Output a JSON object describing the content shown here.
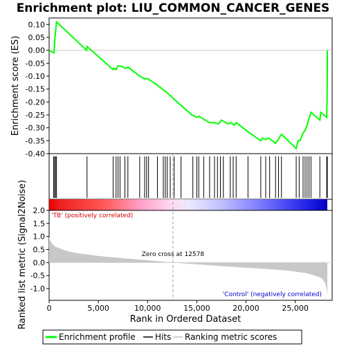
{
  "chart_data": {
    "type": "line",
    "title": "Enrichment plot: LIU_COMMON_CANCER_GENES",
    "es_panel": {
      "ylabel": "Enrichment score (ES)",
      "ylim": [
        -0.4,
        0.125
      ],
      "yticks": [
        "0.10",
        "0.05",
        "0.00",
        "-0.05",
        "-0.10",
        "-0.15",
        "-0.20",
        "-0.25",
        "-0.30",
        "-0.35",
        "-0.40"
      ],
      "ytick_values": [
        0.1,
        0.05,
        0.0,
        -0.05,
        -0.1,
        -0.15,
        -0.2,
        -0.25,
        -0.3,
        -0.35,
        -0.4
      ],
      "line_color": "#00ff00",
      "series": [
        {
          "name": "Enrichment profile",
          "x": [
            0,
            500,
            550,
            650,
            750,
            3800,
            3850,
            6500,
            6600,
            6800,
            7000,
            7200,
            7800,
            8000,
            9200,
            9700,
            10000,
            11000,
            12000,
            13000,
            14500,
            15000,
            15200,
            16300,
            16800,
            17200,
            17500,
            18200,
            18500,
            18800,
            19000,
            20200,
            21500,
            21700,
            22000,
            22300,
            23000,
            23300,
            23600,
            25100,
            25300,
            25500,
            25800,
            26000,
            26200,
            26400,
            26600,
            27500,
            27600,
            28200,
            28230,
            28250,
            28260
          ],
          "y": [
            0.0,
            -0.01,
            0.03,
            0.07,
            0.11,
            0.0,
            0.015,
            -0.075,
            -0.07,
            -0.075,
            -0.06,
            -0.06,
            -0.07,
            -0.065,
            -0.1,
            -0.11,
            -0.11,
            -0.135,
            -0.165,
            -0.2,
            -0.25,
            -0.26,
            -0.255,
            -0.28,
            -0.28,
            -0.285,
            -0.27,
            -0.285,
            -0.28,
            -0.29,
            -0.28,
            -0.315,
            -0.35,
            -0.34,
            -0.345,
            -0.34,
            -0.36,
            -0.345,
            -0.325,
            -0.38,
            -0.35,
            -0.35,
            -0.32,
            -0.31,
            -0.29,
            -0.265,
            -0.24,
            -0.27,
            -0.24,
            -0.26,
            -0.2,
            -0.12,
            0.0
          ]
        }
      ],
      "hits": [
        450,
        550,
        650,
        750,
        3850,
        6500,
        6800,
        7000,
        7200,
        7700,
        8000,
        9200,
        9700,
        9900,
        10100,
        11000,
        11600,
        11800,
        12000,
        12300,
        12700,
        13400,
        14600,
        15000,
        15200,
        15700,
        16300,
        16800,
        17100,
        17400,
        17700,
        18400,
        18700,
        19000,
        20200,
        21500,
        22000,
        22400,
        23000,
        23300,
        23600,
        25100,
        25400,
        25800,
        26000,
        26200,
        26400,
        26600,
        27500,
        28200,
        28260
      ]
    },
    "rank_panel": {
      "ylabel": "Ranked list metric (Signal2Noise)",
      "xlabel": "Rank in Ordered Dataset",
      "ylim": [
        -1.45,
        2.0
      ],
      "yticks": [
        "2.0",
        "1.5",
        "1.0",
        "0.5",
        "0.0",
        "-0.5",
        "-1.0"
      ],
      "ytick_values": [
        2.0,
        1.5,
        1.0,
        0.5,
        0.0,
        -0.5,
        -1.0
      ],
      "xlim": [
        0,
        30000
      ],
      "xticks": [
        "0",
        "5,000",
        "10,000",
        "15,000",
        "20,000",
        "25,000"
      ],
      "xtick_values": [
        0,
        5000,
        10000,
        15000,
        20000,
        25000
      ],
      "metric_x": [
        0,
        100,
        300,
        600,
        1000,
        2000,
        3000,
        5000,
        8000,
        10000,
        12578,
        15000,
        18000,
        21000,
        24000,
        26000,
        27000,
        27700,
        28000,
        28150,
        28260
      ],
      "metric_y": [
        1.0,
        0.85,
        0.72,
        0.62,
        0.55,
        0.42,
        0.35,
        0.25,
        0.15,
        0.09,
        0.0,
        -0.07,
        -0.15,
        -0.22,
        -0.3,
        -0.4,
        -0.5,
        -0.6,
        -0.75,
        -0.95,
        -1.2
      ],
      "zero_cross": 12578,
      "zero_cross_label": "Zero cross at 12578",
      "positive_label": "'TB' (positively correlated)",
      "negative_label": "'Control' (negatively correlated)",
      "positive_color": "#cc0000",
      "negative_color": "#0000cc",
      "fill_color": "#c8c8c8"
    },
    "legend": {
      "items": [
        "Enrichment profile",
        "Hits",
        "Ranking metric scores"
      ],
      "position": "bottom"
    },
    "total_genes": 28260
  }
}
